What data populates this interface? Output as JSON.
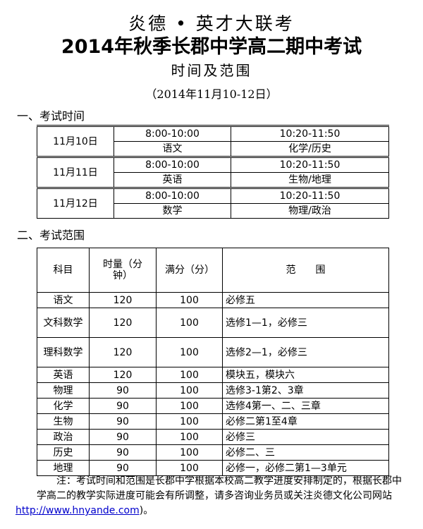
{
  "header": {
    "brand": "炎德 • 英才大联考",
    "title": "2014年秋季长郡中学高二期中考试",
    "subtitle": "时间及范围",
    "date": "（2014年11月10-12日）"
  },
  "section1": {
    "heading": "一、考试时间",
    "days": [
      {
        "date": "11月10日",
        "slots": [
          {
            "time": "8:00-10:00",
            "subject": "语文"
          },
          {
            "time": "10:20-11:50",
            "subject": "化学/历史"
          }
        ]
      },
      {
        "date": "11月11日",
        "slots": [
          {
            "time": "8:00-10:00",
            "subject": "英语"
          },
          {
            "time": "10:20-11:50",
            "subject": "生物/地理"
          }
        ]
      },
      {
        "date": "11月12日",
        "slots": [
          {
            "time": "8:00-10:00",
            "subject": "数学"
          },
          {
            "time": "10:20-11:50",
            "subject": "物理/政治"
          }
        ]
      }
    ]
  },
  "section2": {
    "heading": "二、考试范围",
    "columns": [
      "科目",
      "时量（分钟）",
      "满分（分）",
      "范　　围"
    ],
    "rows": [
      [
        "语文",
        "120",
        "100",
        "必修五"
      ],
      [
        "文科数学",
        "120",
        "100",
        "选修1—1，必修三"
      ],
      [
        "理科数学",
        "120",
        "100",
        "选修2—1，必修三"
      ],
      [
        "英语",
        "120",
        "100",
        "模块五，模块六"
      ],
      [
        "物理",
        "90",
        "100",
        "选修3-1第2、3章"
      ],
      [
        "化学",
        "90",
        "100",
        "选修4第一、二、三章"
      ],
      [
        "生物",
        "90",
        "100",
        "必修二第1至4章"
      ],
      [
        "政治",
        "90",
        "100",
        "必修三"
      ],
      [
        "历史",
        "90",
        "100",
        "必修二、三"
      ],
      [
        "地理",
        "90",
        "100",
        "必修一，必修二第1—3单元"
      ]
    ]
  },
  "note": {
    "text": "注：考试时间和范围是长郡中学根据本校高二教学进度安排制定的，根据长郡中学高二的教学实际进度可能会有所调整，请多咨询业务员或关注炎德文化公司网站",
    "link": "http://www.hnyande.com",
    "tail": ")。"
  },
  "colors": {
    "link": "#0000cc"
  }
}
